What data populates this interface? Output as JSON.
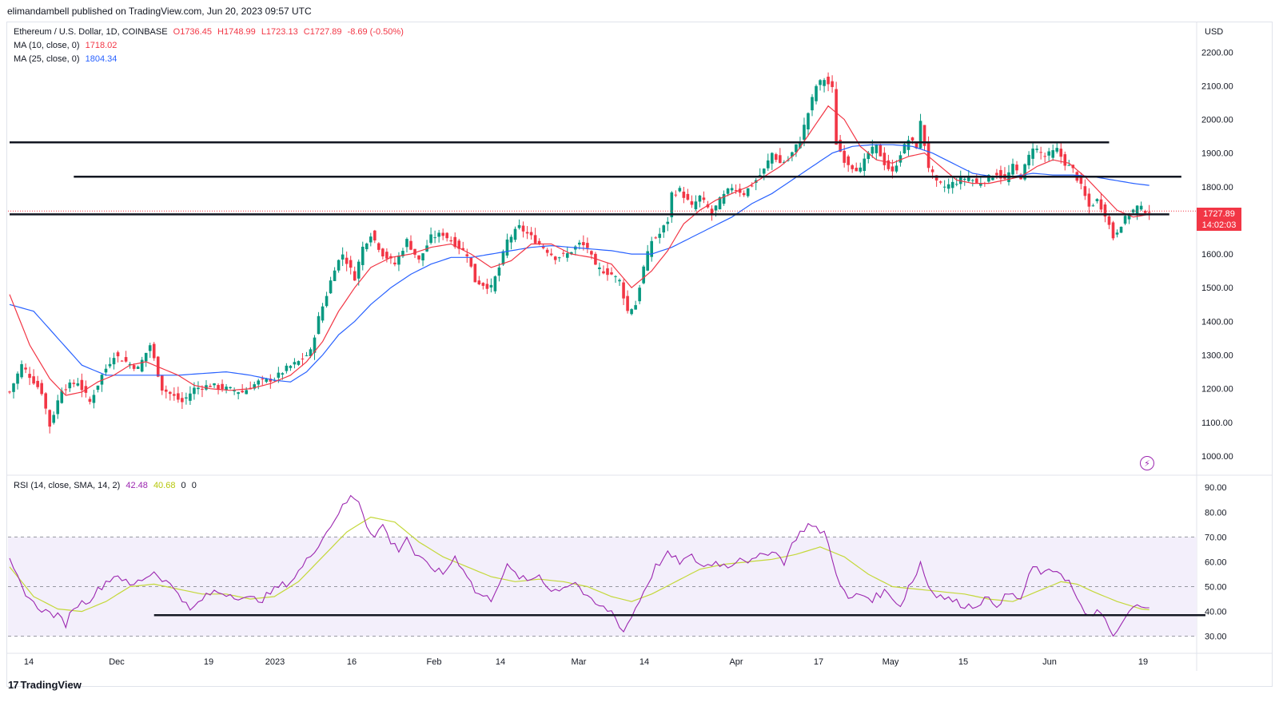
{
  "header": {
    "publisher": "elimandambell published on TradingView.com, Jun 20, 2023 09:57 UTC"
  },
  "legend": {
    "symbol": "Ethereum / U.S. Dollar, 1D, COINBASE",
    "open": "O1736.45",
    "high": "H1748.99",
    "low": "L1723.13",
    "close": "C1727.89",
    "change": "-8.69 (-0.50%)",
    "ma10_label": "MA (10, close, 0)",
    "ma10_value": "1718.02",
    "ma25_label": "MA (25, close, 0)",
    "ma25_value": "1804.34",
    "rsi_label": "RSI (14, close, SMA, 14, 2)",
    "rsi_value": "42.48",
    "rsi_sma_value": "40.68",
    "rsi_extra1": "0",
    "rsi_extra2": "0"
  },
  "price_tag": {
    "price": "1727.89",
    "countdown": "14:02:03"
  },
  "footer": {
    "brand": "TradingView",
    "logo_mark": "17"
  },
  "colors": {
    "up": "#089981",
    "down": "#f23645",
    "ma10": "#f23645",
    "ma25": "#2962ff",
    "rsi": "#9c27b0",
    "rsi_sma": "#c4d83a",
    "rsi_band": "#f3effb"
  },
  "chart_data": {
    "type": "candlestick",
    "currency": "USD",
    "price_axis": {
      "ylim": [
        950,
        2260
      ],
      "ticks": [
        "2200.00",
        "2100.00",
        "2000.00",
        "1900.00",
        "1800.00",
        "1700.00",
        "1600.00",
        "1500.00",
        "1400.00",
        "1300.00",
        "1200.00",
        "1100.00",
        "1000.00"
      ]
    },
    "rsi_axis": {
      "ylim": [
        27,
        92
      ],
      "ticks": [
        "90.00",
        "80.00",
        "70.00",
        "60.00",
        "50.00",
        "40.00",
        "30.00"
      ],
      "band": [
        30,
        70
      ],
      "midline": 50
    },
    "x_labels": [
      "14",
      "Dec",
      "19",
      "2023",
      "16",
      "Feb",
      "14",
      "Mar",
      "14",
      "Apr",
      "17",
      "May",
      "15",
      "Jun",
      "19"
    ],
    "last_close": 1727.89,
    "anchors": [
      [
        0,
        1190
      ],
      [
        3,
        1270
      ],
      [
        8,
        1190
      ],
      [
        10,
        1090
      ],
      [
        13,
        1200
      ],
      [
        17,
        1220
      ],
      [
        20,
        1160
      ],
      [
        23,
        1240
      ],
      [
        26,
        1300
      ],
      [
        32,
        1260
      ],
      [
        35,
        1330
      ],
      [
        38,
        1200
      ],
      [
        43,
        1160
      ],
      [
        46,
        1200
      ],
      [
        50,
        1210
      ],
      [
        54,
        1200
      ],
      [
        58,
        1190
      ],
      [
        62,
        1220
      ],
      [
        66,
        1230
      ],
      [
        69,
        1260
      ],
      [
        72,
        1280
      ],
      [
        75,
        1310
      ],
      [
        77,
        1410
      ],
      [
        79,
        1480
      ],
      [
        81,
        1560
      ],
      [
        83,
        1600
      ],
      [
        86,
        1530
      ],
      [
        88,
        1620
      ],
      [
        90,
        1660
      ],
      [
        93,
        1600
      ],
      [
        96,
        1570
      ],
      [
        99,
        1640
      ],
      [
        102,
        1580
      ],
      [
        105,
        1650
      ],
      [
        108,
        1660
      ],
      [
        111,
        1630
      ],
      [
        114,
        1600
      ],
      [
        116,
        1520
      ],
      [
        118,
        1510
      ],
      [
        120,
        1500
      ],
      [
        122,
        1560
      ],
      [
        124,
        1640
      ],
      [
        127,
        1680
      ],
      [
        130,
        1650
      ],
      [
        133,
        1620
      ],
      [
        136,
        1590
      ],
      [
        139,
        1600
      ],
      [
        142,
        1630
      ],
      [
        144,
        1620
      ],
      [
        146,
        1560
      ],
      [
        148,
        1550
      ],
      [
        150,
        1540
      ],
      [
        152,
        1520
      ],
      [
        154,
        1430
      ],
      [
        156,
        1450
      ],
      [
        158,
        1560
      ],
      [
        160,
        1640
      ],
      [
        162,
        1660
      ],
      [
        164,
        1700
      ],
      [
        165,
        1780
      ],
      [
        167,
        1790
      ],
      [
        170,
        1740
      ],
      [
        172,
        1770
      ],
      [
        175,
        1720
      ],
      [
        177,
        1760
      ],
      [
        180,
        1800
      ],
      [
        183,
        1780
      ],
      [
        186,
        1820
      ],
      [
        188,
        1850
      ],
      [
        190,
        1900
      ],
      [
        192,
        1870
      ],
      [
        194,
        1880
      ],
      [
        197,
        1940
      ],
      [
        199,
        2020
      ],
      [
        201,
        2100
      ],
      [
        203,
        2120
      ],
      [
        205,
        2090
      ],
      [
        206,
        1930
      ],
      [
        208,
        1880
      ],
      [
        210,
        1860
      ],
      [
        212,
        1850
      ],
      [
        214,
        1900
      ],
      [
        216,
        1920
      ],
      [
        218,
        1870
      ],
      [
        220,
        1840
      ],
      [
        222,
        1900
      ],
      [
        224,
        1940
      ],
      [
        226,
        1920
      ],
      [
        227,
        1990
      ],
      [
        229,
        1860
      ],
      [
        231,
        1810
      ],
      [
        233,
        1800
      ],
      [
        235,
        1810
      ],
      [
        237,
        1820
      ],
      [
        239,
        1830
      ],
      [
        241,
        1810
      ],
      [
        243,
        1820
      ],
      [
        246,
        1840
      ],
      [
        248,
        1820
      ],
      [
        250,
        1860
      ],
      [
        252,
        1830
      ],
      [
        255,
        1920
      ],
      [
        258,
        1890
      ],
      [
        261,
        1910
      ],
      [
        263,
        1870
      ],
      [
        265,
        1850
      ],
      [
        267,
        1800
      ],
      [
        269,
        1740
      ],
      [
        271,
        1760
      ],
      [
        273,
        1720
      ],
      [
        275,
        1650
      ],
      [
        277,
        1690
      ],
      [
        279,
        1720
      ],
      [
        281,
        1740
      ],
      [
        283,
        1730
      ],
      [
        284,
        1728
      ]
    ],
    "ma10_anchors": [
      [
        0,
        1480
      ],
      [
        5,
        1330
      ],
      [
        10,
        1230
      ],
      [
        14,
        1180
      ],
      [
        18,
        1190
      ],
      [
        22,
        1220
      ],
      [
        26,
        1240
      ],
      [
        30,
        1270
      ],
      [
        34,
        1280
      ],
      [
        38,
        1260
      ],
      [
        42,
        1240
      ],
      [
        46,
        1210
      ],
      [
        50,
        1200
      ],
      [
        55,
        1195
      ],
      [
        60,
        1200
      ],
      [
        65,
        1215
      ],
      [
        70,
        1240
      ],
      [
        74,
        1280
      ],
      [
        78,
        1340
      ],
      [
        82,
        1430
      ],
      [
        86,
        1500
      ],
      [
        90,
        1560
      ],
      [
        95,
        1590
      ],
      [
        100,
        1600
      ],
      [
        105,
        1620
      ],
      [
        110,
        1630
      ],
      [
        115,
        1600
      ],
      [
        120,
        1560
      ],
      [
        125,
        1580
      ],
      [
        130,
        1630
      ],
      [
        135,
        1630
      ],
      [
        140,
        1600
      ],
      [
        145,
        1590
      ],
      [
        150,
        1570
      ],
      [
        155,
        1500
      ],
      [
        160,
        1550
      ],
      [
        164,
        1610
      ],
      [
        168,
        1690
      ],
      [
        172,
        1730
      ],
      [
        176,
        1760
      ],
      [
        180,
        1780
      ],
      [
        184,
        1800
      ],
      [
        188,
        1830
      ],
      [
        192,
        1860
      ],
      [
        196,
        1900
      ],
      [
        200,
        1970
      ],
      [
        204,
        2040
      ],
      [
        208,
        2000
      ],
      [
        212,
        1920
      ],
      [
        216,
        1880
      ],
      [
        220,
        1870
      ],
      [
        224,
        1890
      ],
      [
        228,
        1900
      ],
      [
        232,
        1860
      ],
      [
        236,
        1820
      ],
      [
        240,
        1810
      ],
      [
        244,
        1810
      ],
      [
        248,
        1820
      ],
      [
        252,
        1830
      ],
      [
        256,
        1860
      ],
      [
        260,
        1880
      ],
      [
        264,
        1870
      ],
      [
        268,
        1830
      ],
      [
        272,
        1780
      ],
      [
        276,
        1730
      ],
      [
        280,
        1710
      ],
      [
        284,
        1718
      ]
    ],
    "ma25_anchors": [
      [
        0,
        1450
      ],
      [
        6,
        1430
      ],
      [
        12,
        1350
      ],
      [
        18,
        1270
      ],
      [
        24,
        1240
      ],
      [
        30,
        1240
      ],
      [
        36,
        1240
      ],
      [
        42,
        1240
      ],
      [
        48,
        1245
      ],
      [
        54,
        1250
      ],
      [
        60,
        1240
      ],
      [
        66,
        1225
      ],
      [
        70,
        1220
      ],
      [
        74,
        1250
      ],
      [
        78,
        1300
      ],
      [
        82,
        1360
      ],
      [
        86,
        1400
      ],
      [
        90,
        1450
      ],
      [
        95,
        1500
      ],
      [
        100,
        1540
      ],
      [
        105,
        1570
      ],
      [
        110,
        1590
      ],
      [
        115,
        1590
      ],
      [
        120,
        1600
      ],
      [
        125,
        1610
      ],
      [
        130,
        1620
      ],
      [
        135,
        1625
      ],
      [
        140,
        1620
      ],
      [
        145,
        1615
      ],
      [
        150,
        1610
      ],
      [
        155,
        1600
      ],
      [
        160,
        1600
      ],
      [
        165,
        1620
      ],
      [
        170,
        1650
      ],
      [
        175,
        1680
      ],
      [
        180,
        1710
      ],
      [
        185,
        1750
      ],
      [
        190,
        1780
      ],
      [
        195,
        1820
      ],
      [
        200,
        1860
      ],
      [
        205,
        1900
      ],
      [
        210,
        1920
      ],
      [
        215,
        1925
      ],
      [
        220,
        1925
      ],
      [
        225,
        1920
      ],
      [
        230,
        1900
      ],
      [
        235,
        1870
      ],
      [
        240,
        1840
      ],
      [
        245,
        1830
      ],
      [
        250,
        1830
      ],
      [
        255,
        1840
      ],
      [
        260,
        1835
      ],
      [
        265,
        1835
      ],
      [
        270,
        1830
      ],
      [
        275,
        1820
      ],
      [
        280,
        1810
      ],
      [
        284,
        1804
      ]
    ],
    "rsi_anchors": [
      [
        0,
        60
      ],
      [
        3,
        50
      ],
      [
        6,
        43
      ],
      [
        9,
        40
      ],
      [
        12,
        38
      ],
      [
        14,
        35
      ],
      [
        16,
        42
      ],
      [
        20,
        45
      ],
      [
        24,
        52
      ],
      [
        27,
        55
      ],
      [
        30,
        50
      ],
      [
        33,
        53
      ],
      [
        36,
        56
      ],
      [
        39,
        52
      ],
      [
        42,
        48
      ],
      [
        45,
        40
      ],
      [
        48,
        45
      ],
      [
        51,
        48
      ],
      [
        55,
        47
      ],
      [
        59,
        45
      ],
      [
        63,
        45
      ],
      [
        67,
        50
      ],
      [
        70,
        52
      ],
      [
        73,
        58
      ],
      [
        76,
        65
      ],
      [
        79,
        72
      ],
      [
        82,
        80
      ],
      [
        85,
        86
      ],
      [
        87,
        85
      ],
      [
        89,
        75
      ],
      [
        91,
        70
      ],
      [
        93,
        75
      ],
      [
        95,
        68
      ],
      [
        97,
        65
      ],
      [
        99,
        70
      ],
      [
        101,
        63
      ],
      [
        103,
        60
      ],
      [
        105,
        58
      ],
      [
        108,
        55
      ],
      [
        111,
        62
      ],
      [
        114,
        55
      ],
      [
        116,
        48
      ],
      [
        118,
        46
      ],
      [
        120,
        45
      ],
      [
        122,
        52
      ],
      [
        124,
        58
      ],
      [
        126,
        55
      ],
      [
        129,
        52
      ],
      [
        132,
        55
      ],
      [
        135,
        48
      ],
      [
        138,
        50
      ],
      [
        141,
        52
      ],
      [
        144,
        45
      ],
      [
        147,
        42
      ],
      [
        150,
        40
      ],
      [
        153,
        32
      ],
      [
        155,
        38
      ],
      [
        158,
        48
      ],
      [
        161,
        58
      ],
      [
        164,
        63
      ],
      [
        167,
        60
      ],
      [
        170,
        62
      ],
      [
        173,
        58
      ],
      [
        176,
        60
      ],
      [
        179,
        58
      ],
      [
        182,
        62
      ],
      [
        185,
        60
      ],
      [
        188,
        63
      ],
      [
        190,
        65
      ],
      [
        193,
        60
      ],
      [
        196,
        70
      ],
      [
        199,
        75
      ],
      [
        201,
        73
      ],
      [
        203,
        72
      ],
      [
        205,
        62
      ],
      [
        207,
        50
      ],
      [
        209,
        45
      ],
      [
        212,
        47
      ],
      [
        215,
        45
      ],
      [
        218,
        48
      ],
      [
        220,
        46
      ],
      [
        222,
        42
      ],
      [
        224,
        50
      ],
      [
        226,
        55
      ],
      [
        227,
        60
      ],
      [
        229,
        50
      ],
      [
        231,
        47
      ],
      [
        234,
        45
      ],
      [
        237,
        43
      ],
      [
        240,
        42
      ],
      [
        243,
        45
      ],
      [
        246,
        43
      ],
      [
        249,
        47
      ],
      [
        252,
        45
      ],
      [
        255,
        58
      ],
      [
        258,
        55
      ],
      [
        261,
        57
      ],
      [
        264,
        52
      ],
      [
        266,
        45
      ],
      [
        268,
        38
      ],
      [
        271,
        40
      ],
      [
        273,
        36
      ],
      [
        275,
        30
      ],
      [
        277,
        34
      ],
      [
        279,
        40
      ],
      [
        281,
        42
      ],
      [
        283,
        43
      ],
      [
        284,
        42.5
      ]
    ],
    "rsi_sma_anchors": [
      [
        0,
        58
      ],
      [
        6,
        46
      ],
      [
        12,
        41
      ],
      [
        18,
        40
      ],
      [
        24,
        44
      ],
      [
        30,
        50
      ],
      [
        36,
        51
      ],
      [
        42,
        49
      ],
      [
        48,
        47
      ],
      [
        54,
        47
      ],
      [
        60,
        45
      ],
      [
        66,
        46
      ],
      [
        72,
        52
      ],
      [
        78,
        62
      ],
      [
        84,
        72
      ],
      [
        90,
        78
      ],
      [
        96,
        76
      ],
      [
        102,
        68
      ],
      [
        108,
        62
      ],
      [
        114,
        58
      ],
      [
        120,
        54
      ],
      [
        126,
        52
      ],
      [
        132,
        53
      ],
      [
        138,
        52
      ],
      [
        144,
        50
      ],
      [
        150,
        46
      ],
      [
        155,
        44
      ],
      [
        160,
        47
      ],
      [
        166,
        52
      ],
      [
        172,
        57
      ],
      [
        178,
        59
      ],
      [
        184,
        60
      ],
      [
        190,
        61
      ],
      [
        196,
        63
      ],
      [
        202,
        66
      ],
      [
        208,
        62
      ],
      [
        214,
        55
      ],
      [
        220,
        50
      ],
      [
        226,
        49
      ],
      [
        232,
        48
      ],
      [
        238,
        47
      ],
      [
        244,
        45
      ],
      [
        250,
        44
      ],
      [
        256,
        48
      ],
      [
        262,
        52
      ],
      [
        266,
        51
      ],
      [
        270,
        48
      ],
      [
        276,
        44
      ],
      [
        282,
        41
      ],
      [
        284,
        40.68
      ]
    ],
    "support_lines": [
      {
        "price": 1932,
        "from": 0,
        "to": 274
      },
      {
        "price": 1830,
        "from": 16,
        "to": 292
      },
      {
        "price": 1718,
        "from": 0,
        "to": 289
      }
    ],
    "rsi_support": {
      "value": 38.5,
      "from": 36,
      "to": 298
    }
  }
}
